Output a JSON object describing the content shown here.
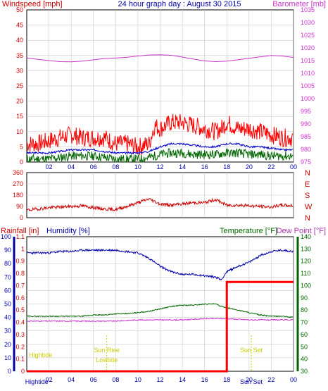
{
  "title": "24 hour graph day : August 30 2015",
  "colors": {
    "wind": "#ff0000",
    "gust": "#ff0000",
    "avg": "#0000cc",
    "dir": "#cc0000",
    "baro": "#cc33cc",
    "rain": "#ff0000",
    "humidity": "#0000aa",
    "temp": "#006600",
    "dew": "#cc33cc",
    "sun": "#cccc00",
    "grid": "#c0c0c0",
    "dewlabel": "#aa33aa"
  },
  "chart_data": [
    {
      "type": "line",
      "name": "wind-baro",
      "left_label": "Windspeed [mph]",
      "right_label": "Barometer [mb]",
      "yleft": {
        "ticks": [
          0,
          5,
          10,
          15,
          20,
          25,
          30,
          35,
          40,
          45,
          50
        ],
        "lim": [
          0,
          50
        ]
      },
      "yright": {
        "ticks": [
          975,
          980,
          985,
          990,
          995,
          1000,
          1005,
          1010,
          1015,
          1020,
          1025,
          1030,
          1035
        ],
        "lim": [
          975,
          1035
        ]
      },
      "x_ticks": [
        "02",
        "04",
        "06",
        "08",
        "10",
        "12",
        "14",
        "16",
        "18",
        "20",
        "22",
        "00"
      ],
      "series": [
        {
          "key": "gust",
          "hours": [
            0,
            1,
            2,
            3,
            4,
            5,
            6,
            7,
            8,
            9,
            10,
            11,
            11.5,
            12,
            13,
            14,
            15,
            16,
            17,
            17.5,
            18,
            19,
            20,
            21,
            22,
            23,
            24
          ],
          "values": [
            6,
            6,
            7,
            8,
            9,
            8,
            8,
            8,
            6,
            6,
            5,
            6,
            12,
            11,
            13,
            13,
            12,
            11,
            10,
            11,
            13,
            11,
            11,
            10,
            9,
            8,
            8
          ]
        },
        {
          "key": "avg",
          "hours": [
            0,
            1,
            2,
            3,
            4,
            5,
            6,
            7,
            8,
            9,
            10,
            11,
            12,
            13,
            14,
            15,
            16,
            17,
            18,
            19,
            20,
            21,
            22,
            23,
            24
          ],
          "values": [
            3,
            3,
            3,
            3.5,
            4,
            4,
            4,
            3.5,
            3,
            3,
            3,
            3.5,
            5,
            6,
            6,
            5.5,
            5,
            5,
            6,
            6,
            5,
            5,
            4.5,
            4,
            4
          ]
        },
        {
          "key": "wind",
          "hours": [
            0,
            1,
            2,
            3,
            4,
            5,
            6,
            7,
            8,
            9,
            10,
            11,
            12,
            13,
            14,
            15,
            16,
            17,
            18,
            19,
            20,
            21,
            22,
            23,
            24
          ],
          "values": [
            1,
            1,
            1,
            1.5,
            2,
            2,
            2,
            1.5,
            1,
            1,
            1,
            1.5,
            2.5,
            3,
            3,
            2.5,
            2.5,
            2.5,
            3,
            3,
            2.5,
            2.5,
            2,
            2,
            2
          ]
        },
        {
          "key": "baro",
          "hours": [
            0,
            1,
            2,
            3,
            4,
            5,
            6,
            7,
            8,
            9,
            10,
            11,
            12,
            13,
            14,
            15,
            16,
            17,
            18,
            19,
            20,
            21,
            22,
            23,
            24
          ],
          "values": [
            1016,
            1015.5,
            1015,
            1014.6,
            1014.5,
            1014.8,
            1015.3,
            1015.8,
            1016,
            1016.3,
            1016.8,
            1017.2,
            1017.3,
            1017.1,
            1016.4,
            1015.6,
            1014.9,
            1014.6,
            1014.8,
            1015.3,
            1015.9,
            1016.5,
            1017,
            1016.8,
            1016.2
          ]
        }
      ]
    },
    {
      "type": "line",
      "name": "wind-direction",
      "y_ticks": [
        0,
        90,
        180,
        270,
        360
      ],
      "y_right_labels": [
        "N",
        "W",
        "S",
        "E",
        "N"
      ],
      "lim": [
        0,
        360
      ],
      "series": [
        {
          "key": "dir",
          "hours": [
            0,
            1,
            2,
            3,
            4,
            5,
            6,
            7,
            8,
            9,
            10,
            11,
            12,
            13,
            14,
            15,
            16,
            17,
            18,
            19,
            20,
            21,
            22,
            23,
            24
          ],
          "values": [
            60,
            70,
            80,
            85,
            90,
            95,
            80,
            70,
            65,
            90,
            120,
            150,
            110,
            100,
            110,
            120,
            120,
            145,
            100,
            100,
            95,
            90,
            85,
            100,
            95
          ]
        }
      ]
    },
    {
      "type": "line",
      "name": "rain-humidity-temp",
      "left_labels": [
        "Rainfall [in]",
        "Humidity [%]"
      ],
      "right_labels": [
        "Temperature [°F]",
        "Dew Point [°F]"
      ],
      "rain_ticks": [
        "0",
        "0.1",
        "0.2",
        "0.3",
        "0.4",
        "0.5",
        "0.6",
        "0.7",
        "0.8",
        "0.9",
        "1",
        "1.1"
      ],
      "hum_ticks": [
        "0",
        "10",
        "20",
        "30",
        "40",
        "50",
        "60",
        "70",
        "80",
        "90",
        "100"
      ],
      "temp_ticks": [
        "30",
        "40",
        "50",
        "60",
        "70",
        "80",
        "90",
        "100",
        "110",
        "120",
        "130",
        "140"
      ],
      "x_ticks": [
        "02",
        "04",
        "06",
        "08",
        "10",
        "12",
        "14",
        "16",
        "18",
        "20",
        "22",
        "00"
      ],
      "annotations": [
        "Hightide",
        "Sun Rise",
        "Lowtide",
        "Sun Set",
        "Hightide",
        "Sun Set"
      ],
      "series": [
        {
          "key": "humidity",
          "hours": [
            0,
            1,
            2,
            3,
            4,
            5,
            6,
            7,
            8,
            9,
            10,
            11,
            12,
            13,
            14,
            15,
            16,
            17,
            17.5,
            18,
            19,
            20,
            21,
            22,
            23,
            24
          ],
          "values": [
            88,
            88,
            88,
            89,
            89,
            90,
            90,
            90,
            90,
            89,
            88,
            84,
            78,
            74,
            72,
            72,
            71,
            70,
            68,
            74,
            78,
            81,
            86,
            89,
            90,
            89
          ]
        },
        {
          "key": "temp",
          "hours": [
            0,
            1,
            2,
            3,
            4,
            5,
            6,
            7,
            8,
            9,
            10,
            11,
            12,
            13,
            14,
            15,
            16,
            17,
            17.5,
            18,
            19,
            20,
            21,
            22,
            23,
            24
          ],
          "values": [
            75,
            75,
            75,
            75,
            75,
            75,
            76,
            76,
            77,
            77,
            78,
            79,
            81,
            83,
            84,
            84,
            85,
            85,
            83,
            82,
            80,
            78,
            76,
            75,
            75,
            74
          ]
        },
        {
          "key": "dew",
          "hours": [
            0,
            2,
            4,
            6,
            8,
            10,
            12,
            14,
            16,
            18,
            20,
            22,
            24
          ],
          "values": [
            71,
            71,
            71,
            71,
            71,
            72,
            72,
            72,
            73,
            73,
            72,
            72,
            72
          ]
        },
        {
          "key": "rain",
          "hours": [
            0,
            1,
            2,
            3,
            4,
            5,
            6,
            7,
            8,
            9,
            10,
            11,
            12,
            13,
            14,
            15,
            16,
            17,
            17.5,
            18,
            19,
            20,
            21,
            22,
            23,
            24
          ],
          "values": [
            0,
            0,
            0,
            0,
            0,
            0,
            0,
            0,
            0,
            0,
            0,
            0,
            0,
            0,
            0,
            0,
            0,
            0,
            0,
            0.73,
            0.73,
            0.73,
            0.73,
            0.73,
            0.73,
            0.73
          ]
        }
      ]
    }
  ]
}
